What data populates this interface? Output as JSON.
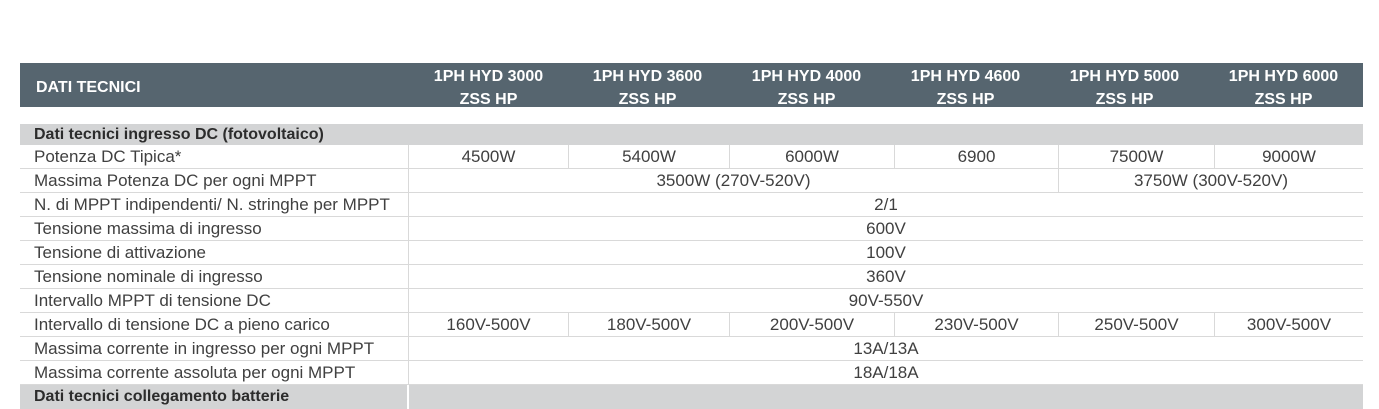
{
  "header": {
    "title": "DATI TECNICI",
    "models": [
      {
        "line1": "1PH HYD 3000",
        "line2": "ZSS HP"
      },
      {
        "line1": "1PH HYD 3600",
        "line2": "ZSS HP"
      },
      {
        "line1": "1PH HYD 4000",
        "line2": "ZSS HP"
      },
      {
        "line1": "1PH HYD 4600",
        "line2": "ZSS HP"
      },
      {
        "line1": "1PH HYD 5000",
        "line2": "ZSS HP"
      },
      {
        "line1": "1PH HYD 6000",
        "line2": "ZSS HP"
      }
    ]
  },
  "sections": [
    {
      "title": "Dati tecnici ingresso DC (fotovoltaico)"
    },
    {
      "title": "Dati tecnici collegamento batterie"
    }
  ],
  "rows": [
    {
      "label": "Potenza DC Tipica*",
      "values": [
        "4500W",
        "5400W",
        "6000W",
        "6900",
        "7500W",
        "9000W"
      ]
    },
    {
      "label": "Massima Potenza DC per ogni MPPT",
      "values": [
        "3500W (270V-520V)",
        "3750W (300V-520V)"
      ]
    },
    {
      "label": "N. di MPPT indipendenti/ N. stringhe per MPPT",
      "values": [
        "2/1"
      ]
    },
    {
      "label": "Tensione massima di ingresso",
      "values": [
        "600V"
      ]
    },
    {
      "label": "Tensione di attivazione",
      "values": [
        "100V"
      ]
    },
    {
      "label": "Tensione nominale di ingresso",
      "values": [
        "360V"
      ]
    },
    {
      "label": "Intervallo MPPT di tensione DC",
      "values": [
        "90V-550V"
      ]
    },
    {
      "label": "Intervallo di tensione DC a pieno carico",
      "values": [
        "160V-500V",
        "180V-500V",
        "200V-500V",
        "230V-500V",
        "250V-500V",
        "300V-500V"
      ]
    },
    {
      "label": "Massima corrente in ingresso per ogni MPPT",
      "values": [
        "13A/13A"
      ]
    },
    {
      "label": "Massima corrente assoluta per ogni MPPT",
      "values": [
        "18A/18A"
      ]
    }
  ]
}
